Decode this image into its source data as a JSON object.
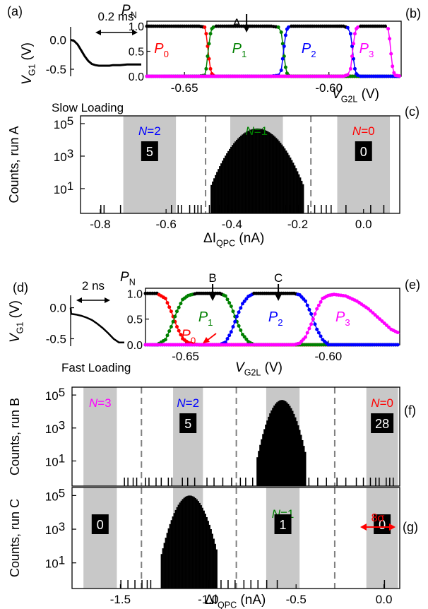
{
  "figure": {
    "note_slow": "Slow Loading",
    "note_fast": "Fast Loading"
  },
  "chart_data": [
    {
      "panel": "(a)",
      "type": "line",
      "ylabel_main": "V",
      "ylabel_sub": "G1",
      "ylabel_unit": "(V)",
      "yticks": [
        0.0,
        -0.5
      ],
      "ytick_labels": [
        "0.0",
        "-0.5"
      ],
      "ylim": [
        -0.62,
        0.22
      ],
      "annotation": "0.2 ms",
      "x": [
        0,
        0.05,
        0.1,
        0.15,
        0.2,
        0.25,
        0.3,
        0.35,
        0.4,
        0.45,
        0.5,
        0.55,
        0.6,
        0.7,
        0.8,
        0.9,
        1.0
      ],
      "y": [
        0.0,
        -0.02,
        -0.08,
        -0.18,
        -0.28,
        -0.36,
        -0.41,
        -0.43,
        -0.44,
        -0.44,
        -0.44,
        -0.44,
        -0.43,
        -0.43,
        -0.42,
        -0.42,
        -0.42
      ]
    },
    {
      "panel": "(b)",
      "type": "line",
      "ylabel_main": "P",
      "ylabel_sub": "N",
      "xlabel_main": "V",
      "xlabel_sub": "G2L",
      "xlabel_unit": "(V)",
      "xlim": [
        -0.663,
        -0.575
      ],
      "ylim": [
        0,
        1.1
      ],
      "xticks": [
        -0.65,
        -0.6
      ],
      "xtick_labels": [
        "-0.65",
        "-0.60"
      ],
      "yticks": [
        0.0,
        0.5,
        1.0
      ],
      "ytick_labels": [
        "0.0",
        "0.5",
        "1.0"
      ],
      "marker": "A",
      "marker_x": -0.6285,
      "series": [
        {
          "name": "P",
          "sub": "0",
          "color": "#ff0000",
          "label_x": -0.6605,
          "x": [
            -0.663,
            -0.645,
            -0.643,
            -0.6425,
            -0.642,
            -0.6415,
            -0.641,
            -0.6405,
            -0.64,
            -0.639,
            -0.575
          ],
          "y": [
            1.0,
            1.0,
            0.98,
            0.85,
            0.6,
            0.35,
            0.15,
            0.05,
            0.02,
            0.0,
            0.0
          ]
        },
        {
          "name": "P",
          "sub": "1",
          "color": "#008000",
          "label_x": -0.6335,
          "x": [
            -0.663,
            -0.645,
            -0.643,
            -0.6425,
            -0.642,
            -0.6415,
            -0.641,
            -0.6405,
            -0.64,
            -0.639,
            -0.62,
            -0.6175,
            -0.6165,
            -0.616,
            -0.6155,
            -0.615,
            -0.6145,
            -0.614,
            -0.613,
            -0.575
          ],
          "y": [
            0.0,
            0.0,
            0.02,
            0.15,
            0.4,
            0.65,
            0.85,
            0.95,
            0.98,
            1.0,
            1.0,
            0.98,
            0.88,
            0.65,
            0.4,
            0.18,
            0.06,
            0.02,
            0.0,
            0.0
          ]
        },
        {
          "name": "P",
          "sub": "2",
          "color": "#0000ff",
          "label_x": -0.6095,
          "x": [
            -0.663,
            -0.62,
            -0.6175,
            -0.6165,
            -0.616,
            -0.6155,
            -0.615,
            -0.6145,
            -0.614,
            -0.613,
            -0.595,
            -0.5935,
            -0.5925,
            -0.592,
            -0.5915,
            -0.591,
            -0.5905,
            -0.59,
            -0.589,
            -0.575
          ],
          "y": [
            0.0,
            0.0,
            0.02,
            0.12,
            0.35,
            0.6,
            0.82,
            0.94,
            0.98,
            1.0,
            1.0,
            0.97,
            0.85,
            0.6,
            0.35,
            0.15,
            0.05,
            0.02,
            0.0,
            0.0
          ]
        },
        {
          "name": "P",
          "sub": "3",
          "color": "#ff00ff",
          "label_x": -0.5895,
          "x": [
            -0.663,
            -0.595,
            -0.5935,
            -0.5925,
            -0.592,
            -0.5915,
            -0.591,
            -0.5905,
            -0.59,
            -0.589,
            -0.5805,
            -0.5795,
            -0.579,
            -0.5785,
            -0.578,
            -0.5775,
            -0.577,
            -0.575
          ],
          "y": [
            0.0,
            0.0,
            0.03,
            0.15,
            0.4,
            0.65,
            0.85,
            0.95,
            0.98,
            1.0,
            1.0,
            0.95,
            0.75,
            0.45,
            0.2,
            0.07,
            0.02,
            0.0
          ]
        }
      ]
    },
    {
      "panel": "(c)",
      "type": "bar",
      "ylabel": "Counts, run A",
      "xlabel_main": "ΔI",
      "xlabel_sub": "QPC",
      "xlabel_unit": "(nA)",
      "xlim": [
        -0.86,
        0.11
      ],
      "xticks": [
        -0.8,
        -0.6,
        -0.4,
        -0.2,
        0.0
      ],
      "xtick_labels": [
        "-0.8",
        "-0.6",
        "-0.4",
        "-0.2",
        "0.0"
      ],
      "ylog": true,
      "ylim": [
        0.3,
        300000
      ],
      "yticks": [
        10,
        1000,
        100000
      ],
      "ytick_labels": [
        "10",
        "10",
        "10"
      ],
      "ytick_exps": [
        "1",
        "3",
        "5"
      ],
      "shaded": [
        [
          -0.73,
          -0.57
        ],
        [
          -0.405,
          -0.245
        ],
        [
          -0.08,
          0.08
        ]
      ],
      "dashed": [
        -0.48,
        -0.16
      ],
      "regions": [
        {
          "label": "N=2",
          "color": "#0000ff",
          "count": "5",
          "x": -0.65
        },
        {
          "label": "N=1",
          "color": "#008000",
          "count": "",
          "x": -0.325
        },
        {
          "label": "N=0",
          "color": "#ff0000",
          "count": "0",
          "x": 0.0
        }
      ],
      "peak": {
        "center": -0.325,
        "sigma": 0.035,
        "height": 50000
      },
      "sparse": [
        -0.8,
        -0.79,
        -0.74,
        -0.585,
        -0.565,
        -0.555,
        -0.53,
        -0.515,
        -0.505,
        -0.495,
        -0.47,
        -0.44,
        -0.415,
        -0.24,
        -0.225,
        -0.215,
        -0.2,
        -0.185,
        -0.17,
        -0.15,
        -0.13,
        -0.115,
        -0.1,
        -0.055,
        0.02,
        0.06
      ]
    },
    {
      "panel": "(d)",
      "type": "line",
      "ylabel_main": "V",
      "ylabel_sub": "G1",
      "ylabel_unit": "(V)",
      "yticks": [
        0.0,
        -0.5
      ],
      "ytick_labels": [
        "0.0",
        "-0.5"
      ],
      "ylim": [
        -0.62,
        0.2
      ],
      "annotation": "2 ns",
      "x": [
        0,
        0.01,
        0.1,
        0.2,
        0.3,
        0.4,
        0.5,
        0.6,
        0.7,
        0.8,
        0.9,
        0.95,
        1.0
      ],
      "y": [
        0.0,
        -0.1,
        -0.11,
        -0.13,
        -0.16,
        -0.2,
        -0.26,
        -0.33,
        -0.41,
        -0.5,
        -0.56,
        -0.56,
        -0.56
      ]
    },
    {
      "panel": "(e)",
      "type": "line",
      "ylabel_main": "P",
      "ylabel_sub": "N",
      "xlabel_main": "V",
      "xlabel_sub": "G2L",
      "xlabel_unit": "(V)",
      "xlim": [
        -0.664,
        -0.575
      ],
      "ylim": [
        0,
        1.1
      ],
      "xticks": [
        -0.65,
        -0.6
      ],
      "xtick_labels": [
        "-0.65",
        "-0.60"
      ],
      "yticks": [
        0.0,
        0.5,
        1.0
      ],
      "ytick_labels": [
        "0.0",
        "0.5",
        "1.0"
      ],
      "markers": [
        {
          "label": "B",
          "x": -0.6405
        },
        {
          "label": "C",
          "x": -0.6175
        }
      ],
      "series": [
        {
          "name": "P",
          "sub": "0",
          "color": "#ff0000",
          "label_x": -0.6515,
          "label_y": 0.2,
          "x": [
            -0.664,
            -0.66,
            -0.657,
            -0.655,
            -0.653,
            -0.651,
            -0.649,
            -0.647,
            -0.645,
            -0.575
          ],
          "y": [
            1.0,
            1.0,
            0.9,
            0.65,
            0.35,
            0.12,
            0.04,
            0.01,
            0.0,
            0.0
          ]
        },
        {
          "name": "P",
          "sub": "1",
          "color": "#008000",
          "label_x": -0.6455,
          "label_y": 0.55,
          "x": [
            -0.664,
            -0.66,
            -0.657,
            -0.655,
            -0.653,
            -0.651,
            -0.649,
            -0.646,
            -0.638,
            -0.636,
            -0.634,
            -0.632,
            -0.63,
            -0.628,
            -0.626,
            -0.575
          ],
          "y": [
            0.0,
            0.0,
            0.1,
            0.35,
            0.65,
            0.88,
            0.96,
            1.0,
            1.0,
            0.95,
            0.75,
            0.45,
            0.2,
            0.06,
            0.0,
            0.0
          ]
        },
        {
          "name": "P",
          "sub": "2",
          "color": "#0000ff",
          "label_x": -0.621,
          "label_y": 0.55,
          "x": [
            -0.664,
            -0.638,
            -0.636,
            -0.634,
            -0.632,
            -0.63,
            -0.628,
            -0.626,
            -0.612,
            -0.61,
            -0.608,
            -0.606,
            -0.604,
            -0.602,
            -0.6,
            -0.575
          ],
          "y": [
            0.0,
            0.0,
            0.05,
            0.25,
            0.55,
            0.8,
            0.94,
            1.0,
            1.0,
            0.97,
            0.85,
            0.6,
            0.3,
            0.1,
            0.0,
            0.0
          ]
        },
        {
          "name": "P",
          "sub": "3",
          "color": "#ff00ff",
          "label_x": -0.5975,
          "label_y": 0.55,
          "x": [
            -0.664,
            -0.612,
            -0.61,
            -0.608,
            -0.606,
            -0.604,
            -0.602,
            -0.6,
            -0.598,
            -0.594,
            -0.59,
            -0.586,
            -0.582,
            -0.578,
            -0.575
          ],
          "y": [
            0.0,
            0.0,
            0.03,
            0.15,
            0.4,
            0.7,
            0.9,
            0.96,
            0.98,
            0.95,
            0.85,
            0.7,
            0.5,
            0.3,
            0.22
          ]
        }
      ]
    },
    {
      "panel": "(f)",
      "type": "bar",
      "ylabel": "Counts, run B",
      "xlim": [
        -1.775,
        0.09
      ],
      "ylog": true,
      "ylim": [
        0.3,
        300000
      ],
      "yticks": [
        10,
        1000,
        100000
      ],
      "ytick_labels": [
        "10",
        "10",
        "10"
      ],
      "ytick_exps": [
        "1",
        "3",
        "5"
      ],
      "shaded": [
        [
          -1.71,
          -1.52
        ],
        [
          -1.2,
          -1.03
        ],
        [
          -0.67,
          -0.48
        ],
        [
          -0.1,
          0.08
        ]
      ],
      "dashed": [
        -1.38,
        -0.84,
        -0.28
      ],
      "regions": [
        {
          "label": "N=3",
          "color": "#ff00ff",
          "count": "",
          "x": -1.615
        },
        {
          "label": "N=2",
          "color": "#0000ff",
          "count": "5",
          "x": -1.115
        },
        {
          "label": "",
          "color": "#000000",
          "count": "",
          "x": -0.575
        },
        {
          "label": "N=0",
          "color": "#ff0000",
          "count": "28",
          "x": -0.01
        }
      ],
      "peak": {
        "center": -0.585,
        "sigma": 0.035,
        "height": 50000
      },
      "sparse": [
        -1.48,
        -1.46,
        -1.43,
        -1.41,
        -1.36,
        -1.34,
        -1.3,
        -1.27,
        -1.23,
        -1.21,
        -1.15,
        -1.12,
        -1.08,
        -1.01,
        -0.97,
        -0.92,
        -0.87,
        -0.82,
        -0.79,
        -0.75,
        -0.71,
        -0.68,
        -0.43,
        -0.38,
        -0.33,
        -0.27,
        -0.22,
        -0.16,
        -0.12,
        -0.08,
        -0.05,
        -0.03,
        0.01,
        0.03,
        0.05
      ]
    },
    {
      "panel": "(g)",
      "type": "bar",
      "ylabel": "Counts, run C",
      "xlabel_main": "ΔI",
      "xlabel_sub": "QPC",
      "xlabel_unit": "(nA)",
      "xlim": [
        -1.775,
        0.09
      ],
      "xticks": [
        -1.5,
        -1.0,
        -0.5,
        0.0
      ],
      "xtick_labels": [
        "-1.5",
        "-1.0",
        "-0.5",
        "0.0"
      ],
      "ylog": true,
      "ylim": [
        0.3,
        300000
      ],
      "yticks": [
        10,
        1000,
        100000
      ],
      "ytick_labels": [
        "10",
        "10",
        "10"
      ],
      "ytick_exps": [
        "1",
        "3",
        "5"
      ],
      "shaded": [
        [
          -1.71,
          -1.52
        ],
        [
          -1.2,
          -1.03
        ],
        [
          -0.67,
          -0.48
        ],
        [
          -0.1,
          0.08
        ]
      ],
      "dashed": [
        -1.38,
        -0.84,
        -0.28
      ],
      "regions": [
        {
          "label": "",
          "color": "#000000",
          "count": "0",
          "x": -1.615
        },
        {
          "label": "",
          "color": "#000000",
          "count": "",
          "x": -1.115
        },
        {
          "label": "N=1",
          "color": "#008000",
          "count": "1",
          "x": -0.575
        },
        {
          "label": "",
          "color": "#000000",
          "count": "0",
          "x": -0.01
        }
      ],
      "arrow_label": "8σ",
      "peak": {
        "center": -1.11,
        "sigma": 0.04,
        "height": 100000
      },
      "sparse": [
        -1.5,
        -1.46,
        -1.42,
        -1.38,
        -1.35,
        -1.33,
        -1.0,
        -0.96,
        -0.93,
        -0.89,
        -0.85,
        -0.8,
        -0.76,
        -0.72,
        -0.67,
        -0.61,
        -0.0
      ]
    }
  ]
}
